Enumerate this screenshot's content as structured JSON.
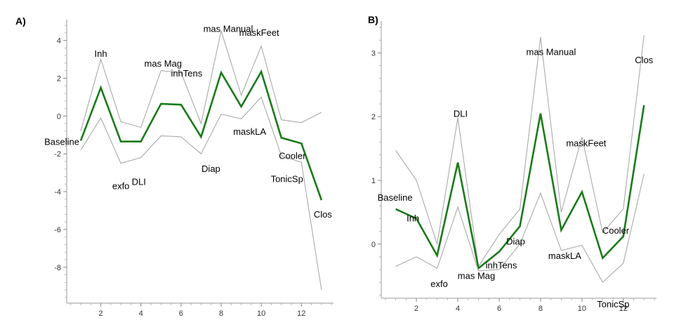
{
  "chart_data": [
    {
      "panel": "A)",
      "type": "line",
      "x": [
        1,
        2,
        3,
        4,
        5,
        6,
        7,
        8,
        9,
        10,
        11,
        12,
        13
      ],
      "xticks": [
        2,
        4,
        6,
        8,
        10,
        12
      ],
      "yticks": [
        4,
        2,
        0,
        -2,
        -4,
        -6,
        -8
      ],
      "xlim": [
        0.3,
        13.6
      ],
      "ylim": [
        -9.9,
        5.1
      ],
      "grid": false,
      "series": [
        {
          "role": "upper",
          "color": "#aaaaaa",
          "values": [
            -0.8,
            3.0,
            -0.3,
            -0.6,
            2.4,
            2.3,
            -0.4,
            4.5,
            1.1,
            3.7,
            -0.2,
            -0.35,
            0.2
          ]
        },
        {
          "role": "mean",
          "color": "#1a7a1a",
          "values": [
            -1.3,
            1.5,
            -1.35,
            -1.35,
            0.65,
            0.6,
            -1.1,
            2.3,
            0.5,
            2.35,
            -1.15,
            -1.45,
            -4.45
          ]
        },
        {
          "role": "lower",
          "color": "#aaaaaa",
          "values": [
            -1.8,
            -0.1,
            -2.5,
            -2.2,
            -1.05,
            -1.1,
            -2.0,
            0.1,
            -0.15,
            1.0,
            -2.1,
            -2.45,
            -9.2
          ]
        }
      ],
      "annotations": [
        "Baseline",
        "Inh",
        "exfo",
        "DLI",
        "mas Mag",
        "inhTens",
        "Diap",
        "mas Manual",
        "maskLA",
        "maskFeet",
        "TonicSp",
        "Cooler",
        "Clos"
      ]
    },
    {
      "panel": "B)",
      "type": "line",
      "x": [
        1,
        2,
        3,
        4,
        5,
        6,
        7,
        8,
        9,
        10,
        11,
        12,
        13
      ],
      "xticks": [
        2,
        4,
        6,
        8,
        10,
        12
      ],
      "yticks": [
        3,
        2,
        1,
        0
      ],
      "xlim": [
        0.3,
        13.6
      ],
      "ylim": [
        -0.85,
        3.5
      ],
      "grid": false,
      "series": [
        {
          "role": "upper",
          "color": "#aaaaaa",
          "values": [
            1.47,
            1.0,
            0.0,
            1.98,
            -0.35,
            0.15,
            0.55,
            3.25,
            0.5,
            1.68,
            0.18,
            0.55,
            3.28
          ]
        },
        {
          "role": "mean",
          "color": "#1a7a1a",
          "values": [
            0.55,
            0.4,
            -0.18,
            1.28,
            -0.38,
            -0.12,
            0.28,
            2.05,
            0.22,
            0.82,
            -0.22,
            0.12,
            2.18
          ]
        },
        {
          "role": "lower",
          "color": "#aaaaaa",
          "values": [
            -0.35,
            -0.2,
            -0.38,
            0.58,
            -0.42,
            -0.4,
            0.0,
            0.8,
            -0.1,
            -0.02,
            -0.6,
            -0.3,
            1.1
          ]
        }
      ],
      "annotations": [
        "Baseline",
        "Inh",
        "exfo",
        "DLI",
        "mas Mag",
        "inhTens",
        "Diap",
        "mas Manual",
        "maskLA",
        "maskFeet",
        "TonicSp",
        "Cooler",
        "Clos"
      ]
    }
  ]
}
